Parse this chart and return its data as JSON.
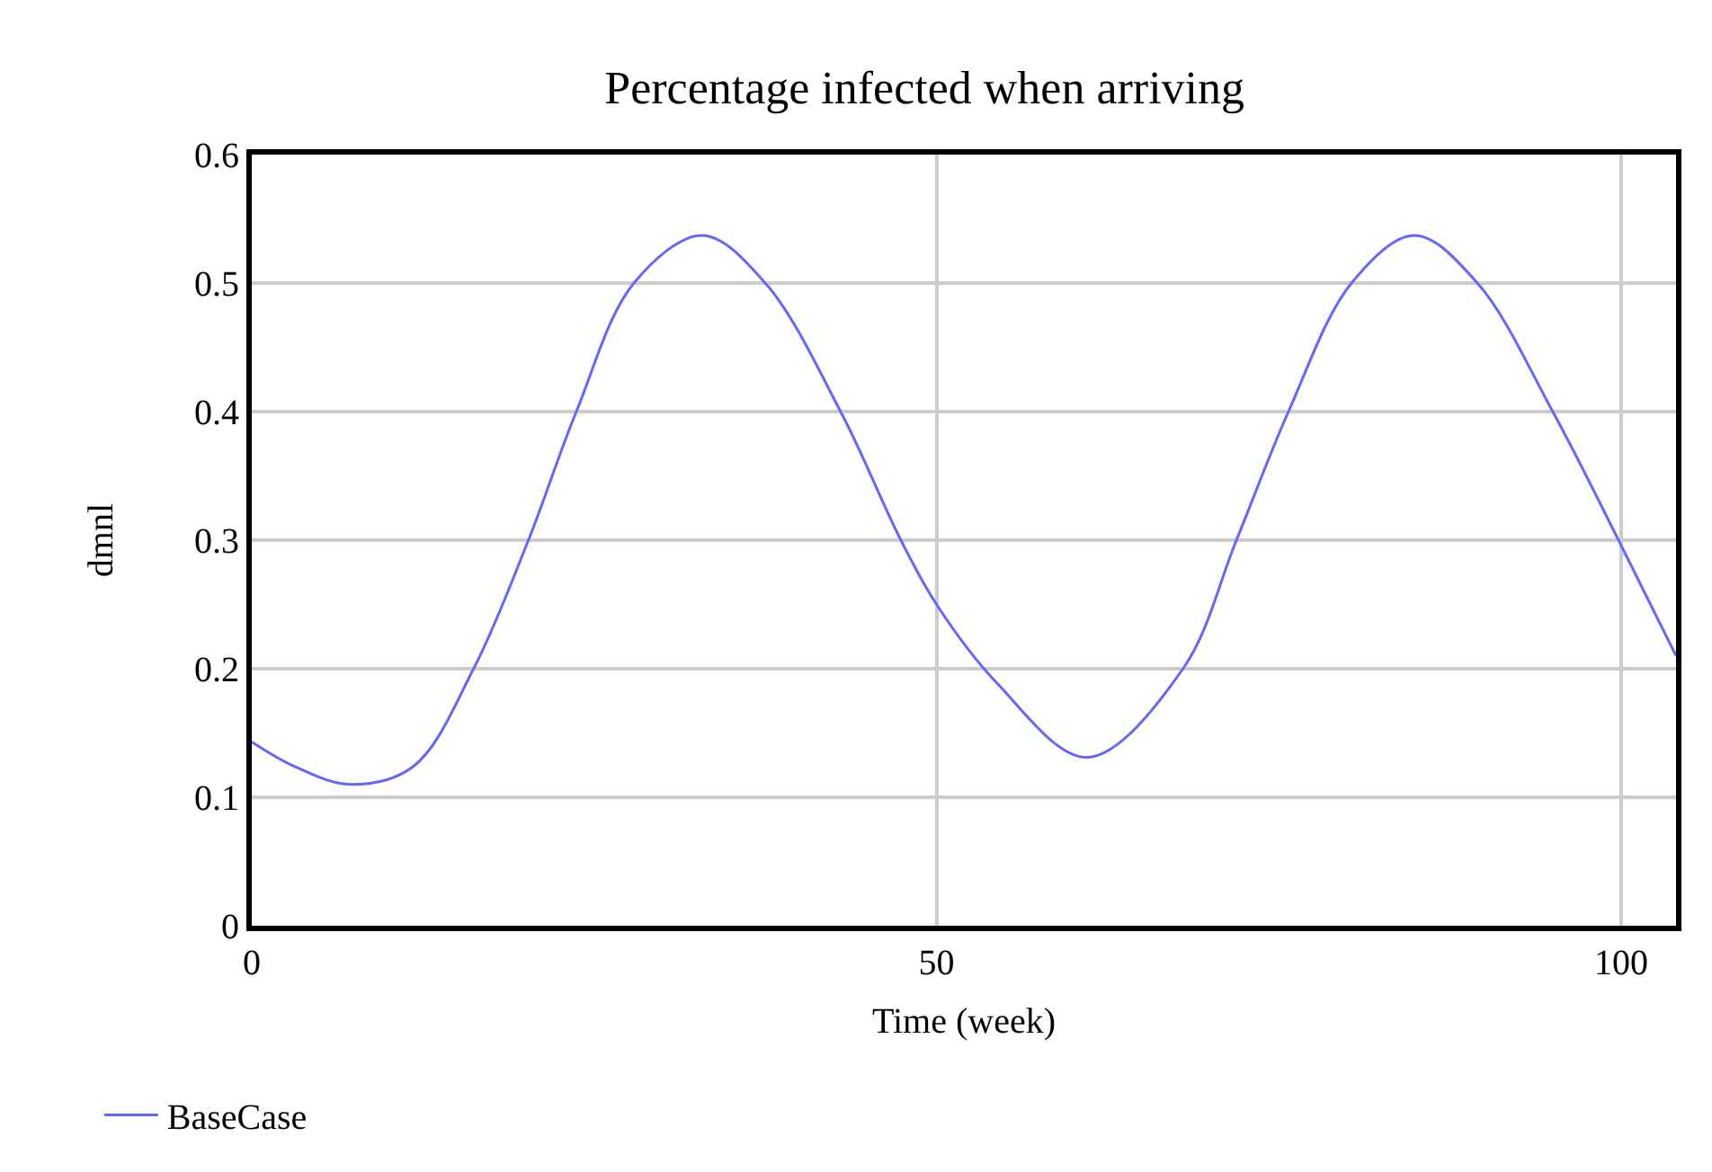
{
  "chart_data": {
    "type": "line",
    "title": "Percentage infected when arriving",
    "xlabel": "Time (week)",
    "ylabel": "dmnl",
    "xlim": [
      0,
      104
    ],
    "xticks": [
      0,
      50,
      100
    ],
    "ylim": [
      0,
      0.6
    ],
    "yticks": [
      0,
      0.1,
      0.2,
      0.3,
      0.4,
      0.5,
      0.6
    ],
    "grid": true,
    "legend": "bottom left",
    "line_style": "solid",
    "series": [
      {
        "name": "BaseCase",
        "color": "#6666ff",
        "x": [
          0,
          3.1,
          7.2,
          11.8,
          16.2,
          20.2,
          23.7,
          27.9,
          32.9,
          37.5,
          43.0,
          47.4,
          50.0,
          54.4,
          61.0,
          68.0,
          71.9,
          75.7,
          80.3,
          84.9,
          89.5,
          95.0,
          99.8,
          104
        ],
        "values": [
          0.143,
          0.124,
          0.11,
          0.124,
          0.2,
          0.3,
          0.4,
          0.5,
          0.537,
          0.5,
          0.4,
          0.3,
          0.25,
          0.189,
          0.131,
          0.2,
          0.3,
          0.4,
          0.5,
          0.537,
          0.5,
          0.4,
          0.3,
          0.21
        ]
      }
    ]
  }
}
